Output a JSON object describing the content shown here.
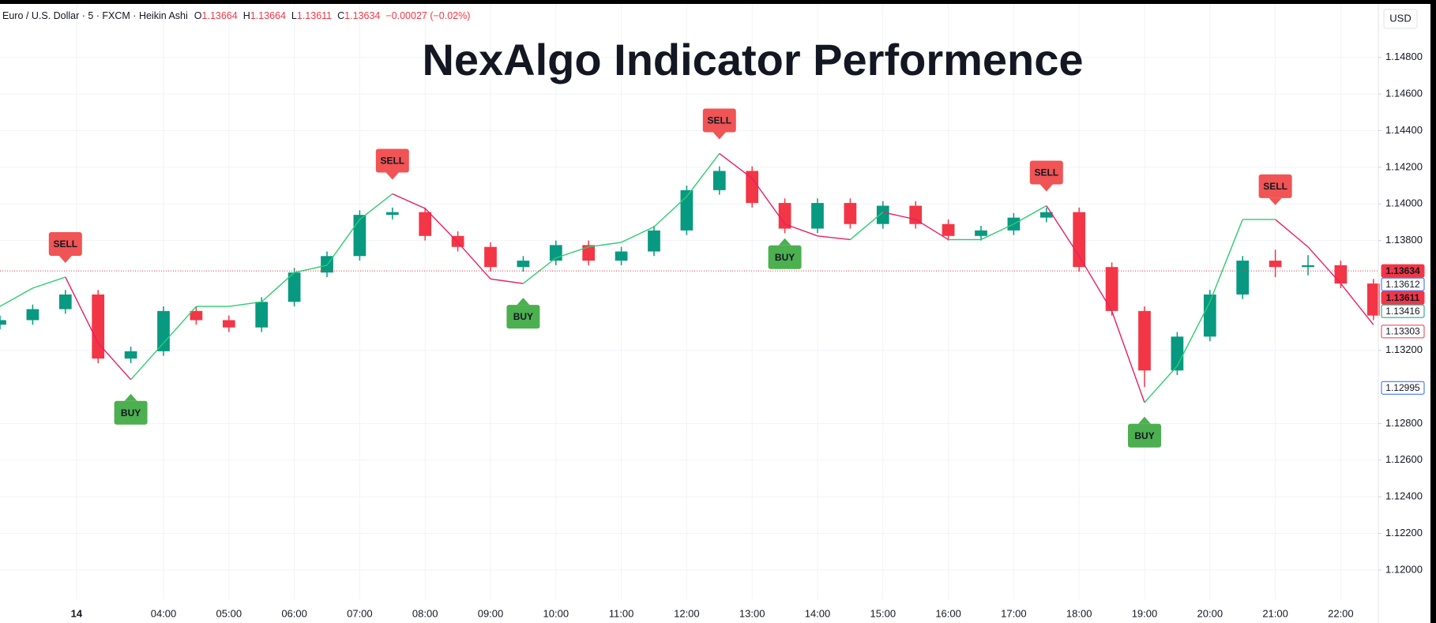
{
  "chart_data": {
    "type": "candlestick",
    "title": "NexAlgo Indicator Performence",
    "title_color": "#e3141f",
    "header": {
      "symbol": "Euro / U.S. Dollar · 5 · FXCM · Heikin Ashi",
      "ohlc": [
        {
          "key": "O",
          "value": 1.13664
        },
        {
          "key": "H",
          "value": 1.13664
        },
        {
          "key": "L",
          "value": 1.13611
        },
        {
          "key": "C",
          "value": 1.13634
        }
      ],
      "change": "−0.00027 (−0.02%)",
      "value_color": "#f23645"
    },
    "currency": "USD",
    "up_color": "#089981",
    "down_color": "#f23645",
    "open": [
      1.1334,
      1.13365,
      1.13425,
      1.13505,
      1.13155,
      1.13195,
      1.13415,
      1.13365,
      1.13325,
      1.13465,
      1.13625,
      1.13715,
      1.1394,
      1.13955,
      1.13825,
      1.13765,
      1.13655,
      1.1369,
      1.13775,
      1.1369,
      1.1374,
      1.13855,
      1.14075,
      1.1418,
      1.14005,
      1.13865,
      1.14005,
      1.1389,
      1.1399,
      1.1389,
      1.13825,
      1.13855,
      1.13925,
      1.13955,
      1.13655,
      1.13415,
      1.1309,
      1.13275,
      1.13505,
      1.1369,
      1.13655,
      1.13665,
      1.13565
    ],
    "high": [
      1.1339,
      1.1345,
      1.1353,
      1.1353,
      1.1322,
      1.1344,
      1.1344,
      1.1339,
      1.1349,
      1.1365,
      1.1374,
      1.13965,
      1.1398,
      1.1398,
      1.1385,
      1.1379,
      1.13715,
      1.138,
      1.138,
      1.13765,
      1.1388,
      1.141,
      1.14205,
      1.14205,
      1.1403,
      1.1403,
      1.1403,
      1.14015,
      1.14015,
      1.13915,
      1.1388,
      1.1395,
      1.1398,
      1.1398,
      1.1368,
      1.1344,
      1.133,
      1.1353,
      1.13715,
      1.1375,
      1.1372,
      1.1369,
      1.1359
    ],
    "low": [
      1.13315,
      1.1334,
      1.134,
      1.1313,
      1.1313,
      1.1317,
      1.1334,
      1.133,
      1.133,
      1.1344,
      1.136,
      1.1369,
      1.13915,
      1.138,
      1.1374,
      1.1363,
      1.1363,
      1.13665,
      1.13665,
      1.13665,
      1.13715,
      1.1383,
      1.1405,
      1.1398,
      1.1384,
      1.1384,
      1.13865,
      1.13865,
      1.13865,
      1.138,
      1.138,
      1.1383,
      1.139,
      1.1363,
      1.1339,
      1.13,
      1.13065,
      1.1325,
      1.1348,
      1.136,
      1.1361,
      1.1354,
      1.13365
    ],
    "close": [
      1.13365,
      1.13425,
      1.13505,
      1.13155,
      1.13195,
      1.13415,
      1.13365,
      1.13325,
      1.13465,
      1.13625,
      1.13715,
      1.1394,
      1.13955,
      1.13825,
      1.13765,
      1.13655,
      1.1369,
      1.13775,
      1.1369,
      1.1374,
      1.13855,
      1.14075,
      1.1418,
      1.14005,
      1.13865,
      1.14005,
      1.1389,
      1.1399,
      1.1389,
      1.13825,
      1.13855,
      1.13925,
      1.13955,
      1.13655,
      1.13415,
      1.1309,
      1.13275,
      1.13505,
      1.1369,
      1.13655,
      1.13665,
      1.13565,
      1.1339
    ],
    "trend_line": {
      "up_color": "#2ecc71",
      "down_color": "#e91e63",
      "values": [
        1.1344,
        1.1354,
        1.136,
        1.1324,
        1.1304,
        1.1324,
        1.1344,
        1.1344,
        1.13465,
        1.13625,
        1.13665,
        1.13915,
        1.14055,
        1.13975,
        1.1379,
        1.1359,
        1.13565,
        1.13705,
        1.13765,
        1.1379,
        1.13875,
        1.1404,
        1.14275,
        1.1414,
        1.1389,
        1.13825,
        1.13805,
        1.13955,
        1.13915,
        1.13805,
        1.13805,
        1.1389,
        1.1399,
        1.13715,
        1.13415,
        1.12915,
        1.13115,
        1.13465,
        1.13915,
        1.13915,
        1.13765,
        1.13565,
        1.1334
      ]
    },
    "signals": [
      {
        "label": "SELL",
        "index": 2,
        "color": "#f05454"
      },
      {
        "label": "BUY",
        "index": 4,
        "color": "#4caf50"
      },
      {
        "label": "SELL",
        "index": 12,
        "color": "#f05454"
      },
      {
        "label": "BUY",
        "index": 16,
        "color": "#4caf50"
      },
      {
        "label": "SELL",
        "index": 22,
        "color": "#f05454"
      },
      {
        "label": "BUY",
        "index": 24,
        "color": "#4caf50"
      },
      {
        "label": "SELL",
        "index": 32,
        "color": "#f05454"
      },
      {
        "label": "BUY",
        "index": 35,
        "color": "#4caf50"
      },
      {
        "label": "SELL",
        "index": 39,
        "color": "#f05454"
      }
    ],
    "price_labels": [
      {
        "value": 1.13634,
        "color": "#f23645",
        "filled": true,
        "dotted_line": true
      },
      {
        "value": 1.13612,
        "color": "#2962ff",
        "filled": false
      },
      {
        "value": 1.13611,
        "color": "#f23645",
        "filled": true
      },
      {
        "value": 1.13416,
        "color": "#089981",
        "filled": false
      },
      {
        "value": 1.13303,
        "color": "#f23645",
        "filled": false
      },
      {
        "value": 1.12995,
        "color": "#2962ff",
        "filled": false
      }
    ],
    "xlim": [
      0,
      42.15
    ],
    "xticks": [
      {
        "value": 2.34,
        "label": "14"
      },
      {
        "value": 5,
        "label": "04:00"
      },
      {
        "value": 7,
        "label": "05:00"
      },
      {
        "value": 9,
        "label": "06:00"
      },
      {
        "value": 11,
        "label": "07:00"
      },
      {
        "value": 13,
        "label": "08:00"
      },
      {
        "value": 15,
        "label": "09:00"
      },
      {
        "value": 17,
        "label": "10:00"
      },
      {
        "value": 19,
        "label": "11:00"
      },
      {
        "value": 21,
        "label": "12:00"
      },
      {
        "value": 23,
        "label": "13:00"
      },
      {
        "value": 25,
        "label": "14:00"
      },
      {
        "value": 27,
        "label": "15:00"
      },
      {
        "value": 29,
        "label": "16:00"
      },
      {
        "value": 31,
        "label": "17:00"
      },
      {
        "value": 33,
        "label": "18:00"
      },
      {
        "value": 35,
        "label": "19:00"
      },
      {
        "value": 37,
        "label": "20:00"
      },
      {
        "value": 39,
        "label": "21:00"
      },
      {
        "value": 41,
        "label": "22:00"
      }
    ],
    "ylim": [
      1.1184,
      1.15075
    ],
    "yticks": [
      {
        "value": 1.148,
        "label": "1.14800"
      },
      {
        "value": 1.146,
        "label": "1.14600"
      },
      {
        "value": 1.144,
        "label": "1.14400"
      },
      {
        "value": 1.142,
        "label": "1.14200"
      },
      {
        "value": 1.14,
        "label": "1.14000"
      },
      {
        "value": 1.138,
        "label": "1.13800"
      },
      {
        "value": 1.132,
        "label": "1.13200"
      },
      {
        "value": 1.128,
        "label": "1.12800"
      },
      {
        "value": 1.126,
        "label": "1.12600"
      },
      {
        "value": 1.124,
        "label": "1.12400"
      },
      {
        "value": 1.122,
        "label": "1.12200"
      },
      {
        "value": 1.12,
        "label": "1.12000"
      }
    ],
    "grid": true
  }
}
